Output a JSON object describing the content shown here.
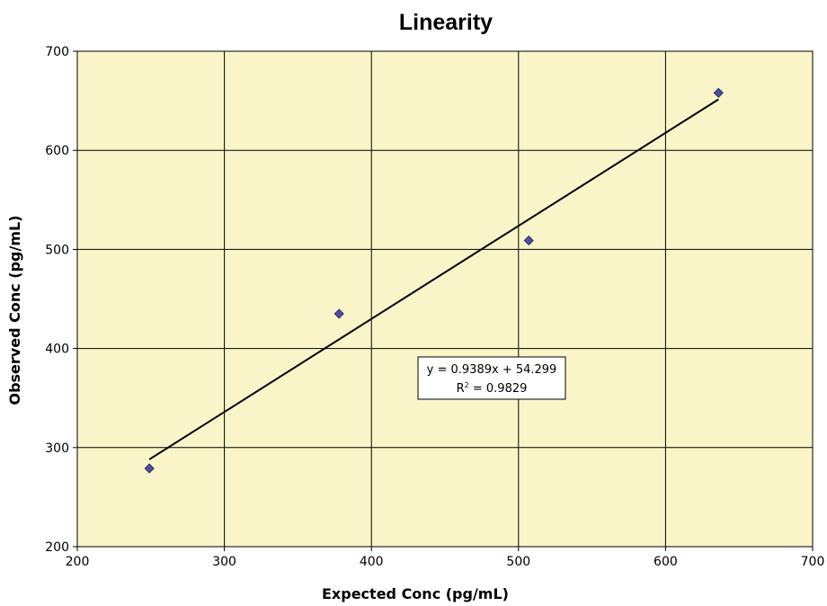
{
  "chart_data": {
    "type": "scatter",
    "title": "Linearity",
    "xlabel": "Expected Conc (pg/mL)",
    "ylabel": "Observed Conc (pg/mL)",
    "xlim": [
      200,
      700
    ],
    "ylim": [
      200,
      700
    ],
    "x_ticks": [
      200,
      300,
      400,
      500,
      600,
      700
    ],
    "y_ticks": [
      200,
      300,
      400,
      500,
      600,
      700
    ],
    "grid": true,
    "legend": "none",
    "plot_background": "#FAF5C8",
    "marker_color": "#4C4FA3",
    "series": [
      {
        "x": [
          249,
          378,
          507,
          636
        ],
        "y": [
          279,
          435,
          509,
          658
        ]
      }
    ],
    "trendline": {
      "slope": 0.9389,
      "intercept": 54.299,
      "x_range": [
        249,
        636
      ],
      "equation": "y = 0.9389x + 54.299",
      "r_squared_prefix": "R",
      "r_squared_exponent": "2",
      "r_squared_suffix": " = 0.9829"
    }
  }
}
